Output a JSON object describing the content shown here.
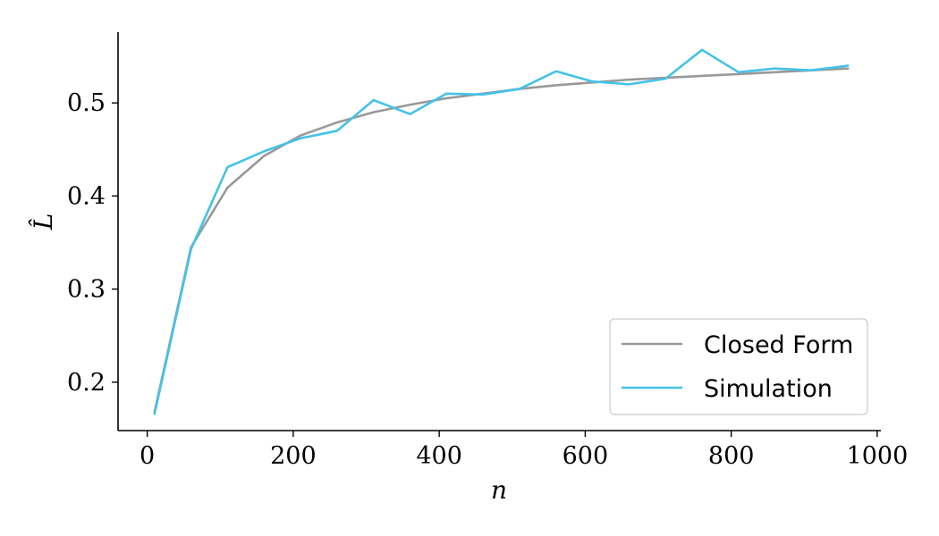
{
  "chart_data": {
    "type": "line",
    "xlabel": "n",
    "ylabel": "L̂",
    "xlim": [
      -40,
      1005
    ],
    "ylim": [
      0.148,
      0.576
    ],
    "x_ticks": [
      0,
      200,
      400,
      600,
      800,
      1000
    ],
    "y_ticks": [
      0.2,
      0.3,
      0.4,
      0.5
    ],
    "x_tick_labels": [
      "0",
      "200",
      "400",
      "600",
      "800",
      "1000"
    ],
    "y_tick_labels": [
      "0.2",
      "0.3",
      "0.4",
      "0.5"
    ],
    "grid": false,
    "legend_position": "bottom-right",
    "x": [
      10,
      60,
      110,
      160,
      210,
      260,
      310,
      360,
      410,
      460,
      510,
      560,
      610,
      660,
      710,
      760,
      810,
      860,
      910,
      960
    ],
    "series": [
      {
        "name": "Closed Form",
        "color": "#999999",
        "values": [
          0.168,
          0.345,
          0.409,
          0.443,
          0.465,
          0.479,
          0.49,
          0.498,
          0.505,
          0.51,
          0.515,
          0.519,
          0.522,
          0.525,
          0.527,
          0.529,
          0.531,
          0.533,
          0.535,
          0.537
        ]
      },
      {
        "name": "Simulation",
        "color": "#44c2e8",
        "values": [
          0.166,
          0.343,
          0.431,
          0.448,
          0.462,
          0.47,
          0.503,
          0.488,
          0.51,
          0.509,
          0.515,
          0.534,
          0.523,
          0.52,
          0.526,
          0.557,
          0.533,
          0.537,
          0.535,
          0.54
        ]
      }
    ]
  }
}
